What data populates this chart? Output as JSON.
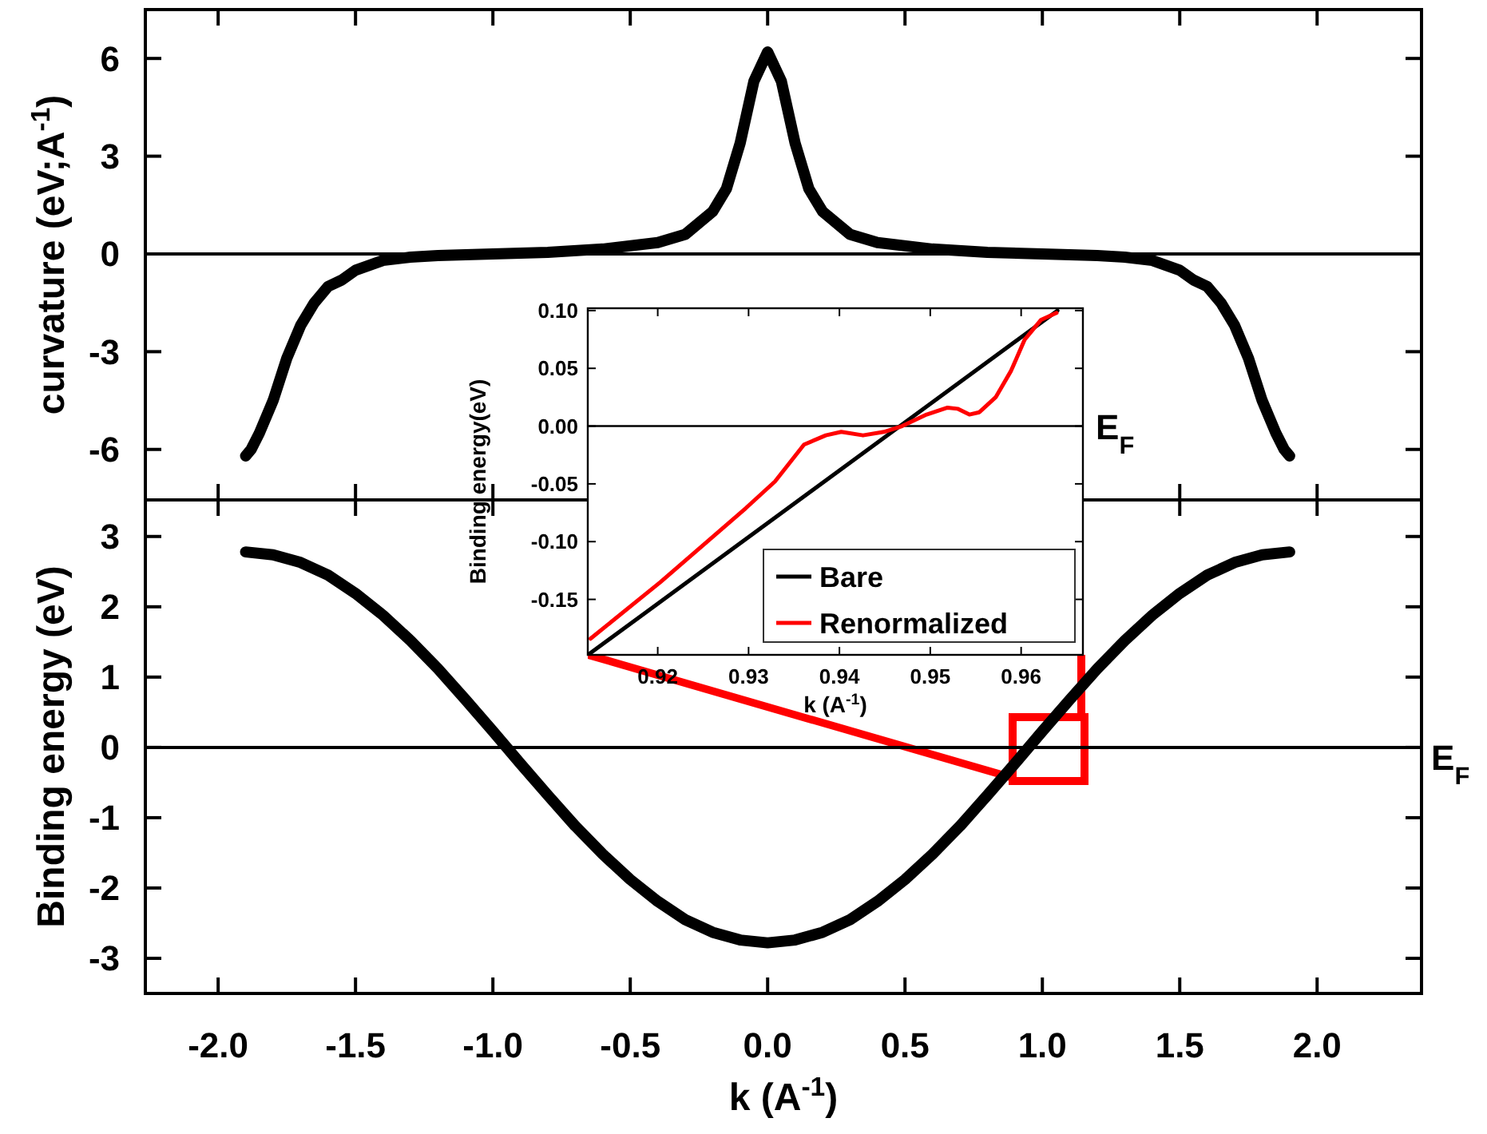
{
  "chart_data": [
    {
      "type": "line",
      "ylabel": "curvature (eV;A$^{-1}$)",
      "xlim": [
        -2.265,
        2.38
      ],
      "ylim": [
        -7.55,
        7.5
      ],
      "xticks": [
        -2,
        -1.5,
        -1,
        -0.5,
        0,
        0.5,
        1,
        1.5,
        2
      ],
      "yticks": [
        -6,
        -3,
        0,
        3,
        6
      ],
      "tick_labels": "y",
      "legend": false,
      "ref_lines": [
        {
          "axis": "y",
          "value": 0,
          "color": "#000000"
        }
      ],
      "series": [
        {
          "color": "#000000",
          "x": [
            -1.9,
            -1.88,
            -1.85,
            -1.8,
            -1.75,
            -1.7,
            -1.65,
            -1.6,
            -1.55,
            -1.5,
            -1.4,
            -1.3,
            -1.2,
            -1,
            -0.8,
            -0.6,
            -0.4,
            -0.3,
            -0.2,
            -0.15,
            -0.1,
            -0.05,
            0,
            0.05,
            0.1,
            0.15,
            0.2,
            0.3,
            0.4,
            0.6,
            0.8,
            1,
            1.2,
            1.3,
            1.4,
            1.5,
            1.55,
            1.6,
            1.65,
            1.7,
            1.75,
            1.8,
            1.85,
            1.88,
            1.9
          ],
          "values": [
            -6.2,
            -6.0,
            -5.5,
            -4.5,
            -3.2,
            -2.2,
            -1.5,
            -1.0,
            -0.8,
            -0.5,
            -0.2,
            -0.1,
            -0.05,
            0,
            0.05,
            0.15,
            0.35,
            0.6,
            1.3,
            2.0,
            3.4,
            5.3,
            6.2,
            5.3,
            3.4,
            2.0,
            1.3,
            0.6,
            0.35,
            0.15,
            0.05,
            0,
            -0.05,
            -0.1,
            -0.2,
            -0.5,
            -0.8,
            -1.0,
            -1.5,
            -2.2,
            -3.2,
            -4.5,
            -5.5,
            -6.0,
            -6.2
          ]
        }
      ]
    },
    {
      "type": "line",
      "xlabel": "k (A$^{-1}$)",
      "ylabel": "Binding energy (eV)",
      "xlim": [
        -2.265,
        2.38
      ],
      "ylim": [
        -3.5,
        3.52
      ],
      "xticks": [
        {
          "value": -2,
          "label": "-2.0"
        },
        {
          "value": -1.5,
          "label": "-1.5"
        },
        {
          "value": -1,
          "label": "-1.0"
        },
        {
          "value": -0.5,
          "label": "-0.5"
        },
        {
          "value": 0,
          "label": "0.0"
        },
        {
          "value": 0.5,
          "label": "0.5"
        },
        {
          "value": 1,
          "label": "1.0"
        },
        {
          "value": 1.5,
          "label": "1.5"
        },
        {
          "value": 2,
          "label": "2.0"
        }
      ],
      "yticks": [
        -3,
        -2,
        -1,
        0,
        1,
        2,
        3
      ],
      "legend": false,
      "ref_lines": [
        {
          "axis": "y",
          "value": 0,
          "label": "E$_{F}$",
          "color": "#000000"
        }
      ],
      "series": [
        {
          "color": "#000000",
          "x": [
            -1.9,
            -1.8,
            -1.7,
            -1.6,
            -1.5,
            -1.4,
            -1.3,
            -1.2,
            -1.1,
            -1,
            -0.9,
            -0.8,
            -0.7,
            -0.6,
            -0.5,
            -0.4,
            -0.3,
            -0.2,
            -0.1,
            0,
            0.1,
            0.2,
            0.3,
            0.4,
            0.5,
            0.6,
            0.7,
            0.8,
            0.9,
            1,
            1.1,
            1.2,
            1.3,
            1.4,
            1.5,
            1.6,
            1.7,
            1.8,
            1.9
          ],
          "values": [
            2.78,
            2.74,
            2.63,
            2.45,
            2.19,
            1.88,
            1.52,
            1.12,
            0.68,
            0.23,
            -0.23,
            -0.68,
            -1.12,
            -1.52,
            -1.88,
            -2.19,
            -2.45,
            -2.63,
            -2.74,
            -2.78,
            -2.74,
            -2.63,
            -2.45,
            -2.19,
            -1.88,
            -1.52,
            -1.12,
            -0.68,
            -0.23,
            0.23,
            0.68,
            1.12,
            1.52,
            1.88,
            2.19,
            2.45,
            2.63,
            2.74,
            2.78
          ]
        }
      ]
    },
    {
      "type": "line",
      "xlabel": "k (A$^{-1}$)",
      "ylabel": "Binding energy(eV)",
      "xlim": [
        0.9123,
        0.9668
      ],
      "ylim": [
        -0.198,
        0.102
      ],
      "xticks": [
        0.92,
        0.93,
        0.94,
        0.95,
        0.96
      ],
      "yticks": [
        {
          "value": -0.15,
          "label": "-0.15"
        },
        {
          "value": -0.1,
          "label": "-0.10"
        },
        {
          "value": -0.05,
          "label": "-0.05"
        },
        {
          "value": 0,
          "label": "0.00"
        },
        {
          "value": 0.05,
          "label": "0.05"
        },
        {
          "value": 0.1,
          "label": "0.10"
        }
      ],
      "legend": "bottom right",
      "ref_lines": [
        {
          "axis": "y",
          "value": 0,
          "label": "E$_{F}$",
          "color": "#000000"
        }
      ],
      "series": [
        {
          "name": "Bare",
          "color": "#000000",
          "x": [
            0.9125,
            0.964
          ],
          "values": [
            -0.197,
            0.1
          ]
        },
        {
          "name": "Renormalized",
          "color": "#ff0000",
          "x": [
            0.9126,
            0.9203,
            0.9297,
            0.9329,
            0.9361,
            0.9385,
            0.9402,
            0.9426,
            0.9449,
            0.9469,
            0.9496,
            0.9519,
            0.953,
            0.9543,
            0.9554,
            0.9572,
            0.9589,
            0.9604,
            0.9622,
            0.9639
          ],
          "values": [
            -0.184,
            -0.135,
            -0.071,
            -0.048,
            -0.016,
            -0.008,
            -0.005,
            -0.008,
            -0.005,
            0,
            0.01,
            0.016,
            0.015,
            0.01,
            0.012,
            0.025,
            0.048,
            0.075,
            0.092,
            0.098
          ]
        }
      ]
    }
  ]
}
